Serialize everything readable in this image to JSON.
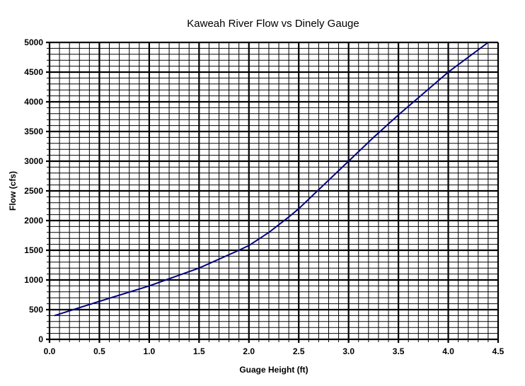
{
  "chart_data": {
    "type": "line",
    "title": "Kaweah River Flow vs Dinely Gauge",
    "xlabel": "Guage Height (ft)",
    "ylabel": "Flow (cfs)",
    "xlim": [
      0,
      4.5
    ],
    "ylim": [
      0,
      5000
    ],
    "x_ticks": [
      "0.0",
      "0.5",
      "1.0",
      "1.5",
      "2.0",
      "2.5",
      "3.0",
      "3.5",
      "4.0",
      "4.5"
    ],
    "y_ticks": [
      "0",
      "500",
      "1000",
      "1500",
      "2000",
      "2500",
      "3000",
      "3500",
      "4000",
      "4500",
      "5000"
    ],
    "grid": true,
    "legend": "none",
    "series": [
      {
        "color": "#000080",
        "x": [
          0.05,
          0.5,
          1.0,
          1.5,
          1.9,
          2.0,
          2.2,
          2.4,
          2.5,
          3.0,
          3.25,
          3.5,
          4.0,
          4.4
        ],
        "y": [
          400,
          640,
          900,
          1200,
          1500,
          1580,
          1800,
          2060,
          2200,
          3000,
          3400,
          3780,
          4500,
          5000
        ]
      }
    ]
  }
}
